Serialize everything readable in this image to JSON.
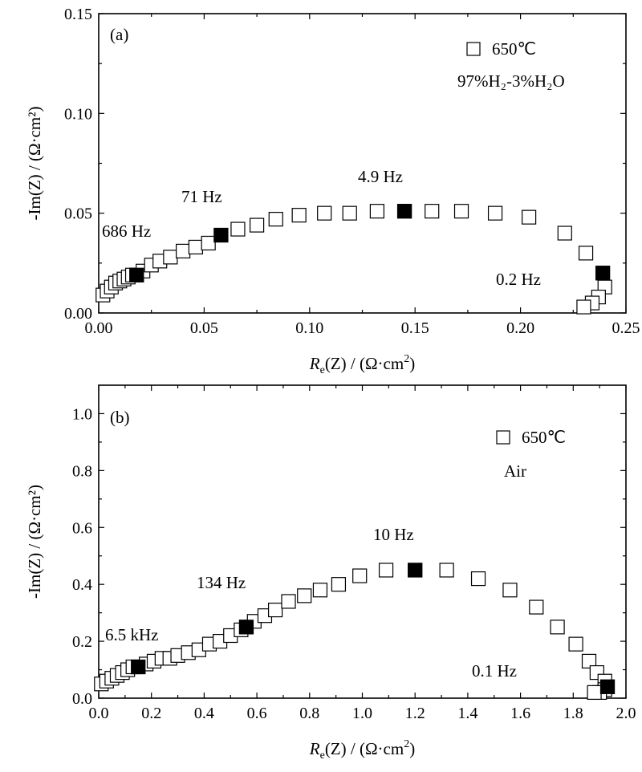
{
  "chart_data": [
    {
      "type": "scatter",
      "panel_label": "(a)",
      "xlabel": {
        "main": "R",
        "sub": "e",
        "rest": "(Z) / (Ω·cm",
        "sup": "2",
        "end": ")"
      },
      "ylabel": "-Im(Z) / (Ω·cm²)",
      "xlim": [
        0,
        0.25
      ],
      "ylim": [
        0,
        0.15
      ],
      "xticks": [
        0.0,
        0.05,
        0.1,
        0.15,
        0.2,
        0.25
      ],
      "xtick_labels": [
        "0.00",
        "0.05",
        "0.10",
        "0.15",
        "0.20",
        "0.25"
      ],
      "yticks": [
        0.0,
        0.05,
        0.1,
        0.15
      ],
      "ytick_labels": [
        "0.00",
        "0.05",
        "0.10",
        "0.15"
      ],
      "legend": {
        "position": "top-right",
        "marker": "open-square",
        "label": "650℃"
      },
      "condition": "97%H₂-3%H₂O",
      "series": [
        {
          "name": "650℃",
          "x": [
            0.002,
            0.004,
            0.006,
            0.008,
            0.01,
            0.012,
            0.014,
            0.016,
            0.018,
            0.021,
            0.025,
            0.029,
            0.034,
            0.04,
            0.046,
            0.052,
            0.058,
            0.066,
            0.075,
            0.084,
            0.095,
            0.107,
            0.119,
            0.132,
            0.145,
            0.158,
            0.172,
            0.188,
            0.204,
            0.221,
            0.231,
            0.239,
            0.24,
            0.237,
            0.234,
            0.23
          ],
          "y": [
            0.009,
            0.011,
            0.013,
            0.015,
            0.016,
            0.017,
            0.018,
            0.019,
            0.019,
            0.021,
            0.024,
            0.026,
            0.028,
            0.031,
            0.033,
            0.035,
            0.039,
            0.042,
            0.044,
            0.047,
            0.049,
            0.05,
            0.05,
            0.051,
            0.051,
            0.051,
            0.051,
            0.05,
            0.048,
            0.04,
            0.03,
            0.02,
            0.013,
            0.008,
            0.005,
            0.003
          ]
        }
      ],
      "filled_points": [
        {
          "x": 0.018,
          "y": 0.019
        },
        {
          "x": 0.058,
          "y": 0.039
        },
        {
          "x": 0.145,
          "y": 0.051
        },
        {
          "x": 0.239,
          "y": 0.02
        }
      ],
      "annotations": [
        {
          "text": "686 Hz",
          "x": 0.002,
          "y": 0.059
        },
        {
          "text": "71 Hz",
          "x": 0.044,
          "y": 0.084
        },
        {
          "text": "4.9 Hz",
          "x": 0.129,
          "y": 0.099
        },
        {
          "text": "0.2 Hz",
          "x": 0.201,
          "y": 0.021
        }
      ]
    },
    {
      "type": "scatter",
      "panel_label": "(b)",
      "xlabel": {
        "main": "R",
        "sub": "e",
        "rest": "(Z) / (Ω·cm",
        "sup": "2",
        "end": ")"
      },
      "ylabel": "-Im(Z) / (Ω·cm²)",
      "xlim": [
        0,
        2.0
      ],
      "ylim": [
        0,
        1.1
      ],
      "xticks": [
        0.0,
        0.2,
        0.4,
        0.6,
        0.8,
        1.0,
        1.2,
        1.4,
        1.6,
        1.8,
        2.0
      ],
      "xtick_labels": [
        "0.0",
        "0.2",
        "0.4",
        "0.6",
        "0.8",
        "1.0",
        "1.2",
        "1.4",
        "1.6",
        "1.8",
        "2.0"
      ],
      "yticks": [
        0.0,
        0.2,
        0.4,
        0.6,
        0.8,
        1.0
      ],
      "ytick_labels": [
        "0.0",
        "0.2",
        "0.4",
        "0.6",
        "0.8",
        "1.0"
      ],
      "legend": {
        "position": "top-right",
        "marker": "open-square",
        "label": "650℃"
      },
      "condition": "Air",
      "series": [
        {
          "name": "650℃",
          "x": [
            0.01,
            0.03,
            0.05,
            0.07,
            0.09,
            0.11,
            0.13,
            0.15,
            0.18,
            0.21,
            0.24,
            0.27,
            0.3,
            0.34,
            0.38,
            0.42,
            0.46,
            0.5,
            0.54,
            0.56,
            0.59,
            0.63,
            0.67,
            0.72,
            0.78,
            0.84,
            0.91,
            0.99,
            1.09,
            1.2,
            1.32,
            1.44,
            1.56,
            1.66,
            1.74,
            1.81,
            1.86,
            1.89,
            1.92,
            1.93,
            1.92,
            1.9,
            1.88
          ],
          "y": [
            0.05,
            0.06,
            0.07,
            0.08,
            0.09,
            0.1,
            0.11,
            0.11,
            0.12,
            0.13,
            0.14,
            0.14,
            0.15,
            0.16,
            0.17,
            0.19,
            0.2,
            0.22,
            0.24,
            0.25,
            0.27,
            0.29,
            0.31,
            0.34,
            0.36,
            0.38,
            0.4,
            0.43,
            0.45,
            0.45,
            0.45,
            0.42,
            0.38,
            0.32,
            0.25,
            0.19,
            0.13,
            0.09,
            0.06,
            0.04,
            0.03,
            0.02,
            0.02
          ]
        }
      ],
      "filled_points": [
        {
          "x": 0.15,
          "y": 0.11
        },
        {
          "x": 0.56,
          "y": 0.25
        },
        {
          "x": 1.2,
          "y": 0.45
        },
        {
          "x": 1.93,
          "y": 0.04
        }
      ],
      "annotations": [
        {
          "text": "6.5 kHz",
          "x": 0.03,
          "y": 0.27
        },
        {
          "text": "134 Hz",
          "x": 0.37,
          "y": 0.52
        },
        {
          "text": "10 Hz",
          "x": 1.0,
          "y": 0.7
        },
        {
          "text": "0.1 Hz",
          "x": 1.53,
          "y": 0.09
        }
      ]
    }
  ]
}
